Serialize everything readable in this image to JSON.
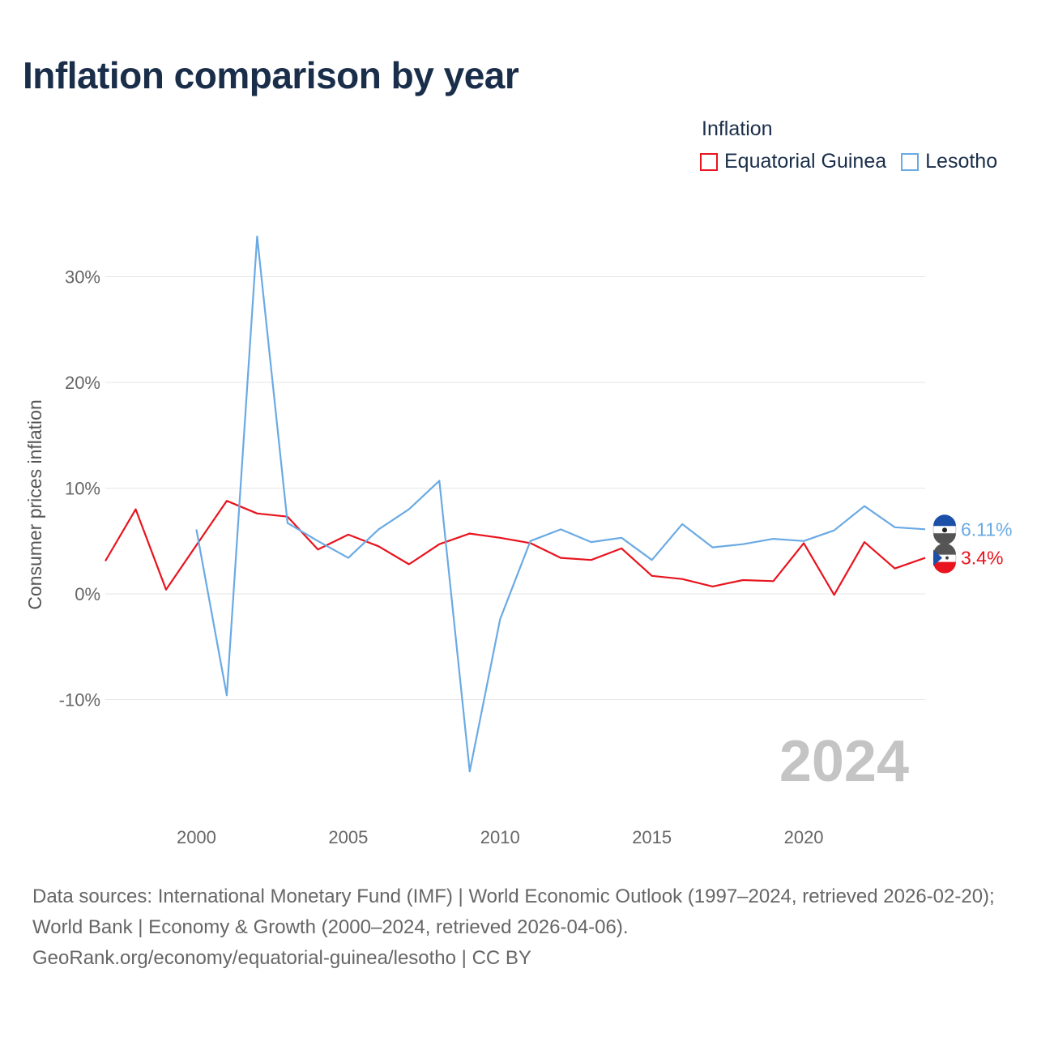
{
  "title": "Inflation comparison by year",
  "legend": {
    "title": "Inflation",
    "items": [
      {
        "label": "Equatorial Guinea",
        "color": "#e8141e"
      },
      {
        "label": "Lesotho",
        "color": "#6aaae4"
      }
    ]
  },
  "footer": {
    "sources": "Data sources: International Monetary Fund (IMF) | World Economic Outlook (1997–2024, retrieved 2026-02-20); World Bank | Economy & Growth (2000–2024, retrieved 2026-04-06).",
    "credit": "GeoRank.org/economy/equatorial-guinea/lesotho | CC BY"
  },
  "chart_data": {
    "type": "line",
    "title": "Inflation comparison by year",
    "xlabel": "",
    "ylabel": "Consumer prices inflation",
    "xlim": [
      1997,
      2024
    ],
    "ylim": [
      -20,
      35
    ],
    "x_ticks": [
      2000,
      2005,
      2010,
      2015,
      2020
    ],
    "y_ticks": [
      -10,
      0,
      10,
      20,
      30
    ],
    "y_tick_labels": [
      "-10%",
      "0%",
      "10%",
      "20%",
      "30%"
    ],
    "grid": true,
    "legend_position": "top-right",
    "watermark": "2024",
    "series": [
      {
        "name": "Equatorial Guinea",
        "color": "#e8141e",
        "end_label": "3.4%",
        "x": [
          1997,
          1998,
          1999,
          2000,
          2001,
          2002,
          2003,
          2004,
          2005,
          2006,
          2007,
          2008,
          2009,
          2010,
          2011,
          2012,
          2013,
          2014,
          2015,
          2016,
          2017,
          2018,
          2019,
          2020,
          2021,
          2022,
          2023,
          2024
        ],
        "values": [
          3.1,
          8.0,
          0.4,
          4.6,
          8.8,
          7.6,
          7.3,
          4.2,
          5.6,
          4.5,
          2.8,
          4.7,
          5.7,
          5.3,
          4.8,
          3.4,
          3.2,
          4.3,
          1.7,
          1.4,
          0.7,
          1.3,
          1.2,
          4.8,
          -0.1,
          4.9,
          2.4,
          3.4
        ]
      },
      {
        "name": "Lesotho",
        "color": "#6aaae4",
        "end_label": "6.11%",
        "x": [
          2000,
          2001,
          2002,
          2003,
          2004,
          2005,
          2006,
          2007,
          2008,
          2009,
          2010,
          2011,
          2012,
          2013,
          2014,
          2015,
          2016,
          2017,
          2018,
          2019,
          2020,
          2021,
          2022,
          2023,
          2024
        ],
        "values": [
          6.1,
          -9.6,
          33.8,
          6.7,
          5.0,
          3.4,
          6.1,
          8.0,
          10.7,
          -16.8,
          -2.4,
          5.0,
          6.1,
          4.9,
          5.3,
          3.2,
          6.6,
          4.4,
          4.7,
          5.2,
          5.0,
          6.0,
          8.3,
          6.3,
          6.11
        ]
      }
    ]
  }
}
